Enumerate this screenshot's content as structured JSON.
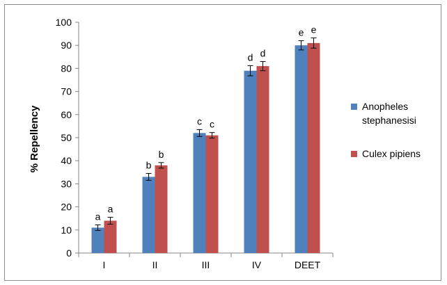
{
  "chart_data": {
    "type": "bar",
    "title": "",
    "xlabel": "",
    "ylabel": "% Repellency",
    "ylim": [
      0,
      100
    ],
    "yticks": [
      0,
      10,
      20,
      30,
      40,
      50,
      60,
      70,
      80,
      90,
      100
    ],
    "categories": [
      "I",
      "II",
      "III",
      "IV",
      "DEET"
    ],
    "grid": false,
    "legend_position": "right",
    "series": [
      {
        "name": "Anopheles stephanesisi",
        "legend_lines": [
          "Anopheles",
          "stephanesisi"
        ],
        "color": "#4f81bd",
        "values": [
          11,
          33,
          52,
          79,
          90
        ],
        "errors": [
          1.2,
          1.5,
          1.5,
          2.2,
          2.0
        ],
        "letters": [
          "a",
          "b",
          "c",
          "d",
          "e"
        ]
      },
      {
        "name": "Culex pipiens",
        "legend_lines": [
          "Culex pipiens"
        ],
        "color": "#c0504d",
        "values": [
          14,
          38,
          51,
          81,
          91
        ],
        "errors": [
          1.5,
          1.2,
          1.2,
          2.0,
          2.2
        ],
        "letters": [
          "a",
          "b",
          "c",
          "d",
          "e"
        ]
      }
    ]
  }
}
